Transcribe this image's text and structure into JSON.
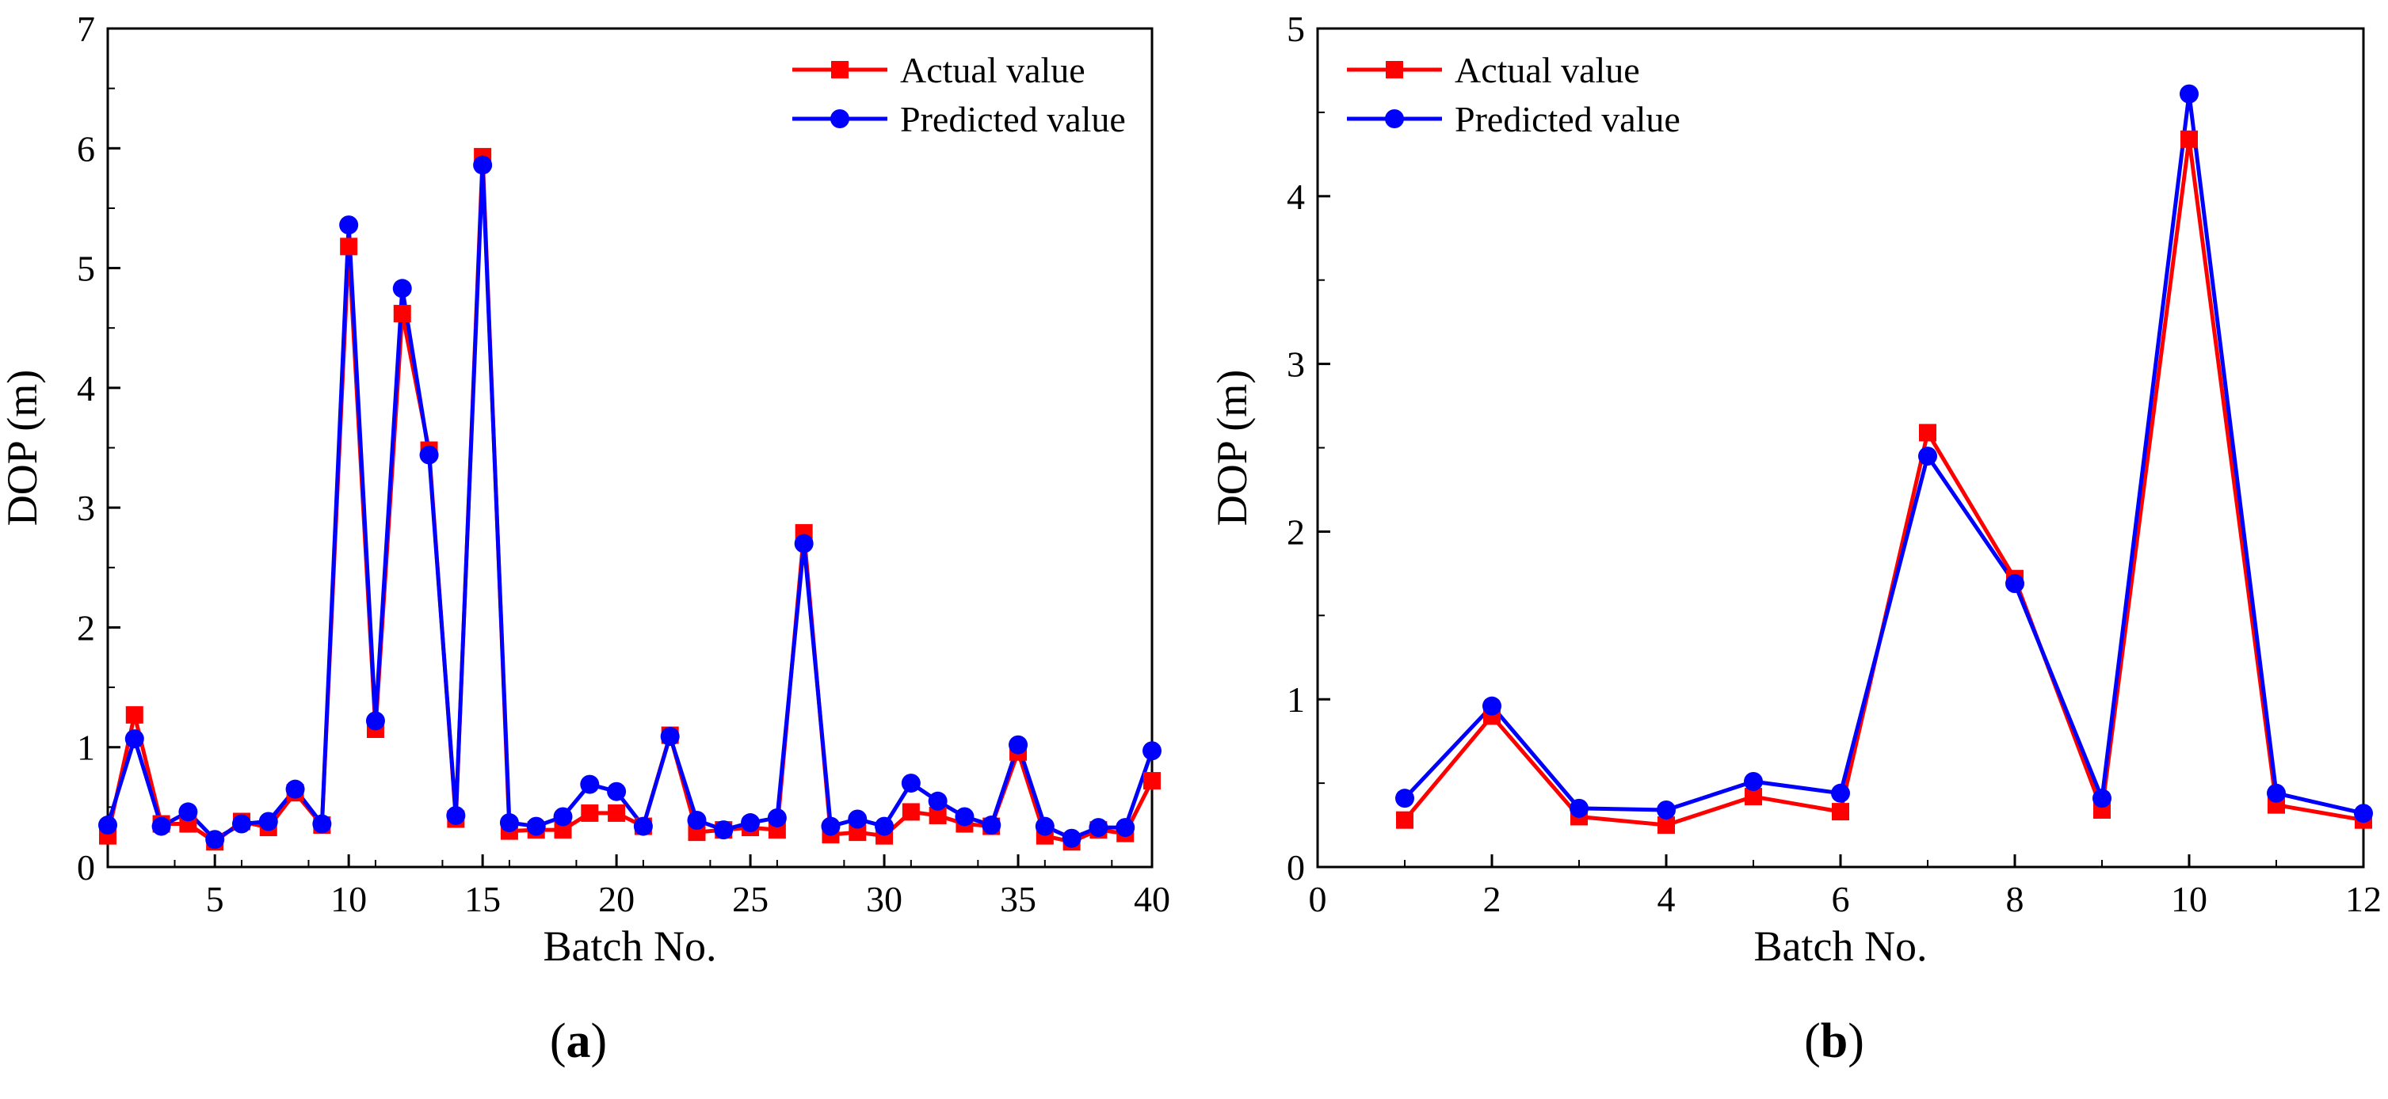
{
  "chart_data": [
    {
      "type": "line",
      "panel_label": "a",
      "xlabel": "Batch No.",
      "ylabel": "DOP (m)",
      "xlim": [
        1,
        40
      ],
      "ylim": [
        0,
        7
      ],
      "xticks": [
        5,
        10,
        15,
        20,
        25,
        30,
        35,
        40
      ],
      "yticks": [
        0,
        1,
        2,
        3,
        4,
        5,
        6,
        7
      ],
      "grid": false,
      "legend_position": "top-right",
      "x": [
        1,
        2,
        3,
        4,
        5,
        6,
        7,
        8,
        9,
        10,
        11,
        12,
        13,
        14,
        15,
        16,
        17,
        18,
        19,
        20,
        21,
        22,
        23,
        24,
        25,
        26,
        27,
        28,
        29,
        30,
        31,
        32,
        33,
        34,
        35,
        36,
        37,
        38,
        39,
        40
      ],
      "series": [
        {
          "name": "Actual value",
          "color": "#ff0000",
          "marker": "square",
          "values": [
            0.26,
            1.27,
            0.36,
            0.36,
            0.21,
            0.38,
            0.33,
            0.62,
            0.35,
            5.18,
            1.15,
            4.62,
            3.48,
            0.4,
            5.93,
            0.3,
            0.31,
            0.31,
            0.45,
            0.45,
            0.34,
            1.1,
            0.29,
            0.31,
            0.33,
            0.31,
            2.79,
            0.27,
            0.29,
            0.26,
            0.46,
            0.43,
            0.36,
            0.34,
            0.96,
            0.26,
            0.21,
            0.31,
            0.28,
            0.72
          ]
        },
        {
          "name": "Predicted value",
          "color": "#0000ff",
          "marker": "circle",
          "values": [
            0.35,
            1.07,
            0.34,
            0.46,
            0.23,
            0.36,
            0.38,
            0.65,
            0.36,
            5.36,
            1.22,
            4.83,
            3.44,
            0.43,
            5.86,
            0.37,
            0.34,
            0.42,
            0.69,
            0.63,
            0.34,
            1.09,
            0.39,
            0.31,
            0.37,
            0.41,
            2.7,
            0.34,
            0.4,
            0.34,
            0.7,
            0.55,
            0.42,
            0.35,
            1.02,
            0.34,
            0.24,
            0.33,
            0.33,
            0.97
          ]
        }
      ]
    },
    {
      "type": "line",
      "panel_label": "b",
      "xlabel": "Batch No.",
      "ylabel": "DOP (m)",
      "xlim": [
        0,
        12
      ],
      "ylim": [
        0,
        5
      ],
      "xticks": [
        0,
        2,
        4,
        6,
        8,
        10,
        12
      ],
      "yticks": [
        0,
        1,
        2,
        3,
        4,
        5
      ],
      "grid": false,
      "legend_position": "top-left",
      "x": [
        1,
        2,
        3,
        4,
        5,
        6,
        7,
        8,
        9,
        10,
        11,
        12
      ],
      "series": [
        {
          "name": "Actual value",
          "color": "#ff0000",
          "marker": "square",
          "values": [
            0.28,
            0.9,
            0.3,
            0.25,
            0.42,
            0.33,
            2.59,
            1.72,
            0.34,
            4.34,
            0.37,
            0.28
          ]
        },
        {
          "name": "Predicted value",
          "color": "#0000ff",
          "marker": "circle",
          "values": [
            0.41,
            0.96,
            0.35,
            0.34,
            0.51,
            0.44,
            2.45,
            1.69,
            0.41,
            4.61,
            0.44,
            0.32
          ]
        }
      ]
    }
  ]
}
